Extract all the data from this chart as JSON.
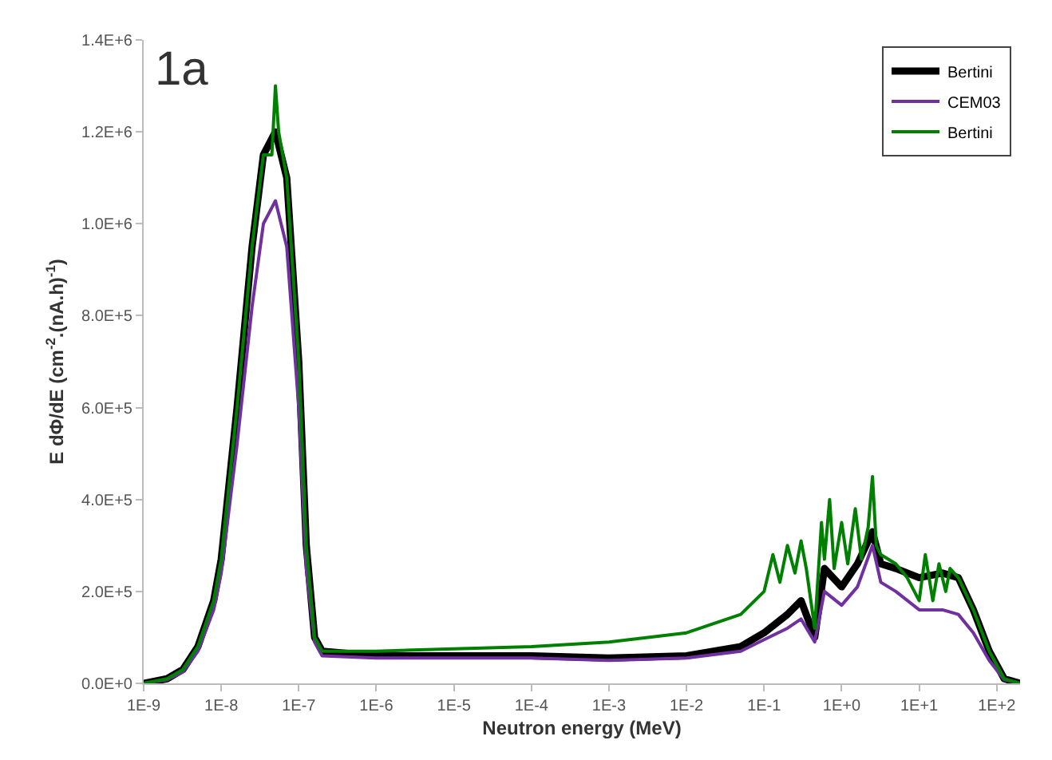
{
  "chart_data": {
    "type": "line",
    "xlabel": "Neutron energy (MeV)",
    "ylabel": "E dΦ/dE (cm$^{-2}$.(nA.h)$^{-1}$)",
    "annotations": [
      "1a"
    ],
    "log": "x",
    "grid": false,
    "legend": "top right",
    "marker": "none",
    "line_style": "solid",
    "xlim": [
      1e-09,
      200
    ],
    "ylim": [
      0,
      1400000
    ],
    "xticks": [
      {
        "value": 1e-09,
        "label": "1E-9"
      },
      {
        "value": 1e-08,
        "label": "1E-8"
      },
      {
        "value": 1e-07,
        "label": "1E-7"
      },
      {
        "value": 1e-06,
        "label": "1E-6"
      },
      {
        "value": 1e-05,
        "label": "1E-5"
      },
      {
        "value": 0.0001,
        "label": "1E-4"
      },
      {
        "value": 0.001,
        "label": "1E-3"
      },
      {
        "value": 0.01,
        "label": "1E-2"
      },
      {
        "value": 0.1,
        "label": "1E-1"
      },
      {
        "value": 1,
        "label": "1E+0"
      },
      {
        "value": 10,
        "label": "1E+1"
      },
      {
        "value": 100,
        "label": "1E+2"
      }
    ],
    "yticks": [
      {
        "value": 0,
        "label": "0.0E+0"
      },
      {
        "value": 200000,
        "label": "2.0E+5"
      },
      {
        "value": 400000,
        "label": "4.0E+5"
      },
      {
        "value": 600000,
        "label": "6.0E+5"
      },
      {
        "value": 800000,
        "label": "8.0E+5"
      },
      {
        "value": 1000000,
        "label": "1.0E+6"
      },
      {
        "value": 1200000,
        "label": "1.2E+6"
      },
      {
        "value": 1400000,
        "label": "1.4E+6"
      }
    ],
    "x": [
      1e-09,
      2e-09,
      3.2e-09,
      5e-09,
      8e-09,
      1e-08,
      1.6e-08,
      2.5e-08,
      3.5e-08,
      5e-08,
      7e-08,
      1e-07,
      1.25e-07,
      1.6e-07,
      2e-07,
      1e-06,
      1e-05,
      0.0001,
      0.001,
      0.01,
      0.05,
      0.1,
      0.2,
      0.3,
      0.45,
      0.6,
      1,
      1.6,
      2.5,
      3.2,
      5,
      10,
      20,
      32,
      50,
      80,
      125,
      200
    ],
    "series": [
      {
        "name": "Bertini",
        "color": "#000000",
        "values": [
          0,
          10000,
          30000,
          80000,
          180000,
          270000,
          600000,
          950000,
          1150000,
          1200000,
          1100000,
          700000,
          300000,
          100000,
          70000,
          60000,
          60000,
          60000,
          55000,
          60000,
          80000,
          110000,
          150000,
          180000,
          100000,
          250000,
          210000,
          260000,
          330000,
          260000,
          250000,
          230000,
          240000,
          230000,
          160000,
          70000,
          10000,
          0
        ]
      },
      {
        "name": "CEM03",
        "color": "#7030a0",
        "values": [
          0,
          8000,
          25000,
          70000,
          160000,
          240000,
          520000,
          820000,
          1000000,
          1050000,
          950000,
          600000,
          250000,
          90000,
          60000,
          55000,
          55000,
          55000,
          50000,
          55000,
          70000,
          95000,
          120000,
          140000,
          90000,
          200000,
          170000,
          210000,
          300000,
          220000,
          200000,
          160000,
          160000,
          150000,
          110000,
          50000,
          8000,
          0
        ]
      },
      {
        "name": "Bertini",
        "color": "#008000",
        "x": [
          1e-09,
          2e-09,
          3.2e-09,
          5e-09,
          8e-09,
          1e-08,
          1.6e-08,
          2.5e-08,
          3.5e-08,
          4.5e-08,
          5e-08,
          5.5e-08,
          7e-08,
          1e-07,
          1.25e-07,
          1.6e-07,
          2e-07,
          1e-06,
          1e-05,
          0.0001,
          0.001,
          0.01,
          0.05,
          0.1,
          0.13,
          0.16,
          0.2,
          0.25,
          0.3,
          0.35,
          0.45,
          0.55,
          0.6,
          0.7,
          0.8,
          1,
          1.2,
          1.5,
          1.8,
          2.2,
          2.5,
          2.8,
          3.2,
          4,
          5,
          7,
          10,
          12,
          15,
          18,
          22,
          25,
          32,
          50,
          80,
          125,
          200
        ],
        "values": [
          0,
          10000,
          30000,
          80000,
          180000,
          270000,
          600000,
          950000,
          1150000,
          1150000,
          1300000,
          1200000,
          1100000,
          700000,
          300000,
          100000,
          70000,
          70000,
          75000,
          80000,
          90000,
          110000,
          150000,
          200000,
          280000,
          220000,
          300000,
          240000,
          310000,
          250000,
          120000,
          350000,
          270000,
          400000,
          250000,
          350000,
          260000,
          380000,
          270000,
          340000,
          450000,
          300000,
          280000,
          270000,
          260000,
          230000,
          180000,
          280000,
          180000,
          260000,
          200000,
          250000,
          230000,
          160000,
          70000,
          10000,
          0
        ]
      }
    ]
  }
}
